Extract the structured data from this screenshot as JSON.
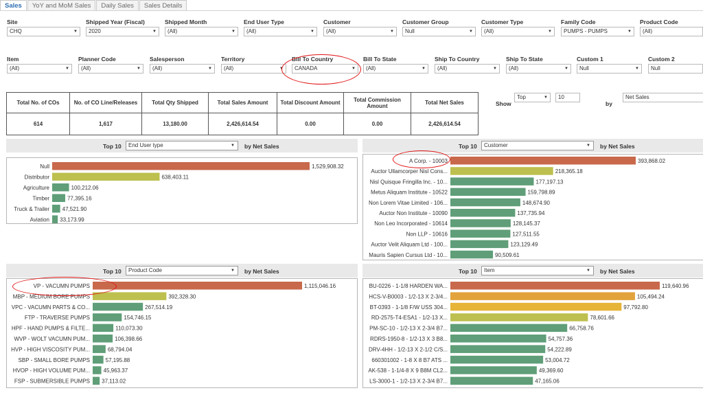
{
  "tabs": [
    {
      "label": "Sales",
      "active": true
    },
    {
      "label": "YoY and MoM Sales",
      "active": false
    },
    {
      "label": "Daily Sales",
      "active": false
    },
    {
      "label": "Sales Details",
      "active": false
    }
  ],
  "filters_row1": [
    {
      "label": "Site",
      "value": "CHQ"
    },
    {
      "label": "Shipped Year (Fiscal)",
      "value": "2020"
    },
    {
      "label": "Shipped Month",
      "value": "(All)"
    },
    {
      "label": "End User Type",
      "value": "(All)"
    },
    {
      "label": "Customer",
      "value": "(All)"
    },
    {
      "label": "Customer Group",
      "value": "Null"
    },
    {
      "label": "Customer Type",
      "value": "(All)"
    },
    {
      "label": "Family Code",
      "value": "PUMPS - PUMPS"
    },
    {
      "label": "Product Code",
      "value": "(All)"
    }
  ],
  "filters_row2": [
    {
      "label": "Item",
      "value": "(All)"
    },
    {
      "label": "Planner Code",
      "value": "(All)"
    },
    {
      "label": "Salesperson",
      "value": "(All)"
    },
    {
      "label": "Territory",
      "value": "(All)"
    },
    {
      "label": "Bill To Country",
      "value": "CANADA"
    },
    {
      "label": "Bill To State",
      "value": "(All)"
    },
    {
      "label": "Ship To Country",
      "value": "(All)"
    },
    {
      "label": "Ship To State",
      "value": "(All)"
    },
    {
      "label": "Custom 1",
      "value": "Null"
    },
    {
      "label": "Custom 2",
      "value": "Null"
    }
  ],
  "kpis": [
    {
      "label": "Total No. of COs",
      "value": "614"
    },
    {
      "label": "No. of CO Line/Releases",
      "value": "1,617"
    },
    {
      "label": "Total Qty Shipped",
      "value": "13,180.00"
    },
    {
      "label": "Total Sales Amount",
      "value": "2,426,614.54"
    },
    {
      "label": "Total Discount Amount",
      "value": "0.00"
    },
    {
      "label": "Total Commission Amount",
      "value": "0.00"
    },
    {
      "label": "Total Net Sales",
      "value": "2,426,614.54"
    }
  ],
  "show_control": {
    "show_label": "Show",
    "top_value": "Top",
    "count_value": "10",
    "by_label": "by",
    "metric_value": "Net Sales"
  },
  "colors": {
    "orange": "#c8694b",
    "yellowgreen": "#bdc04e",
    "green": "#5f9e78",
    "gold": "#e6b437",
    "amber": "#e2a33c",
    "annotation": "#e01010"
  },
  "chart_panels": [
    {
      "id": "end-user",
      "top_label": "Top 10",
      "dropdown": "End User type",
      "by_label": "by Net Sales"
    },
    {
      "id": "customer",
      "top_label": "Top 10",
      "dropdown": "Customer",
      "by_label": "by Net Sales"
    },
    {
      "id": "product",
      "top_label": "Top 10",
      "dropdown": "Product Code",
      "by_label": "by Net Sales"
    },
    {
      "id": "item",
      "top_label": "Top 10",
      "dropdown": "Item",
      "by_label": "by Net Sales"
    }
  ],
  "chart_data": [
    {
      "type": "bar",
      "orientation": "horizontal",
      "categories": [
        "Null",
        "Distributor",
        "Agriculture",
        "Timber",
        "Truck & Trailer",
        "Aviation"
      ],
      "values": [
        1529908.32,
        638403.11,
        100212.06,
        77395.16,
        47521.9,
        33173.99
      ],
      "labels": [
        "1,529,908.32",
        "638,403.11",
        "100,212.06",
        "77,395.16",
        "47,521.90",
        "33,173.99"
      ],
      "colors": [
        "orange",
        "yellowgreen",
        "green",
        "green",
        "green",
        "green"
      ]
    },
    {
      "type": "bar",
      "orientation": "horizontal",
      "categories": [
        "A Corp. - 10003",
        "Auctor Ullamcorper Nisl Cons...",
        "Nisl Quisque Fringilla Inc. - 10...",
        "Metus Aliquam Institute - 10522",
        "Non Lorem Vitae Limited - 106...",
        "Auctor Non Institute - 10090",
        "Non Leo Incorporated - 10614",
        "Non LLP - 10616",
        "Auctor Velit Aliquam Ltd - 100...",
        "Mauris Sapien Cursus Ltd - 10..."
      ],
      "values": [
        393868.02,
        218365.18,
        177197.13,
        159798.89,
        148674.9,
        137735.94,
        128145.37,
        127511.55,
        123129.49,
        90509.61
      ],
      "labels": [
        "393,868.02",
        "218,365.18",
        "177,197.13",
        "159,798.89",
        "148,674.90",
        "137,735.94",
        "128,145.37",
        "127,511.55",
        "123,129.49",
        "90,509.61"
      ],
      "colors": [
        "orange",
        "yellowgreen",
        "green",
        "green",
        "green",
        "green",
        "green",
        "green",
        "green",
        "green"
      ]
    },
    {
      "type": "bar",
      "orientation": "horizontal",
      "categories": [
        "VP - VACUMN PUMPS",
        "MBP - MEDIUM BORE PUMPS",
        "VPC - VACUMN PARTS & CO...",
        "FTP - TRAVERSE PUMPS",
        "HPF - HAND PUMPS & FILTE...",
        "WVP - WOLT VACUMN PUM...",
        "HVP - HIGH VISCOSITY PUM...",
        "SBP - SMALL BORE PUMPS",
        "HVOP - HIGH VOLUME PUM...",
        "FSP - SUBMERSIBLE PUMPS"
      ],
      "values": [
        1115046.16,
        392328.3,
        267514.19,
        154746.15,
        110073.3,
        106398.66,
        68794.04,
        57195.88,
        45963.37,
        37113.02
      ],
      "labels": [
        "1,115,046.16",
        "392,328.30",
        "267,514.19",
        "154,746.15",
        "110,073.30",
        "106,398.66",
        "68,794.04",
        "57,195.88",
        "45,963.37",
        "37,113.02"
      ],
      "colors": [
        "orange",
        "yellowgreen",
        "green",
        "green",
        "green",
        "green",
        "green",
        "green",
        "green",
        "green"
      ]
    },
    {
      "type": "bar",
      "orientation": "horizontal",
      "categories": [
        "BU-0226 - 1-1/8 HARDEN WA...",
        "HCS-V-B0003 - 1/2-13 X 2-3/4...",
        "BT-0393 - 1-1/8 F/W USS 304...",
        "RD-2575-T4-ESA1 - 1/2-13 X...",
        "PM-SC-10 - 1/2-13 X 2-3/4 B7...",
        "RDRS-1950-8 - 1/2-13 X 3 B8...",
        "DRV-4HH - 1/2-13 X 2-1/2 C/S...",
        "660301002 - 1-8 X 8 B7 ATS ...",
        "AK-538 - 1-1/4-8 X 9 B8M CL2...",
        "LS-3000-1 - 1/2-13 X 2-3/4 B7..."
      ],
      "values": [
        119640.96,
        105494.24,
        97792.8,
        78601.66,
        66758.76,
        54757.36,
        54222.89,
        53004.72,
        49369.6,
        47165.06
      ],
      "labels": [
        "119,640.96",
        "105,494.24",
        "97,792.80",
        "78,601.66",
        "66,758.76",
        "54,757.36",
        "54,222.89",
        "53,004.72",
        "49,369.60",
        "47,165.06"
      ],
      "colors": [
        "orange",
        "amber",
        "gold",
        "yellowgreen",
        "green",
        "green",
        "green",
        "green",
        "green",
        "green"
      ]
    }
  ]
}
